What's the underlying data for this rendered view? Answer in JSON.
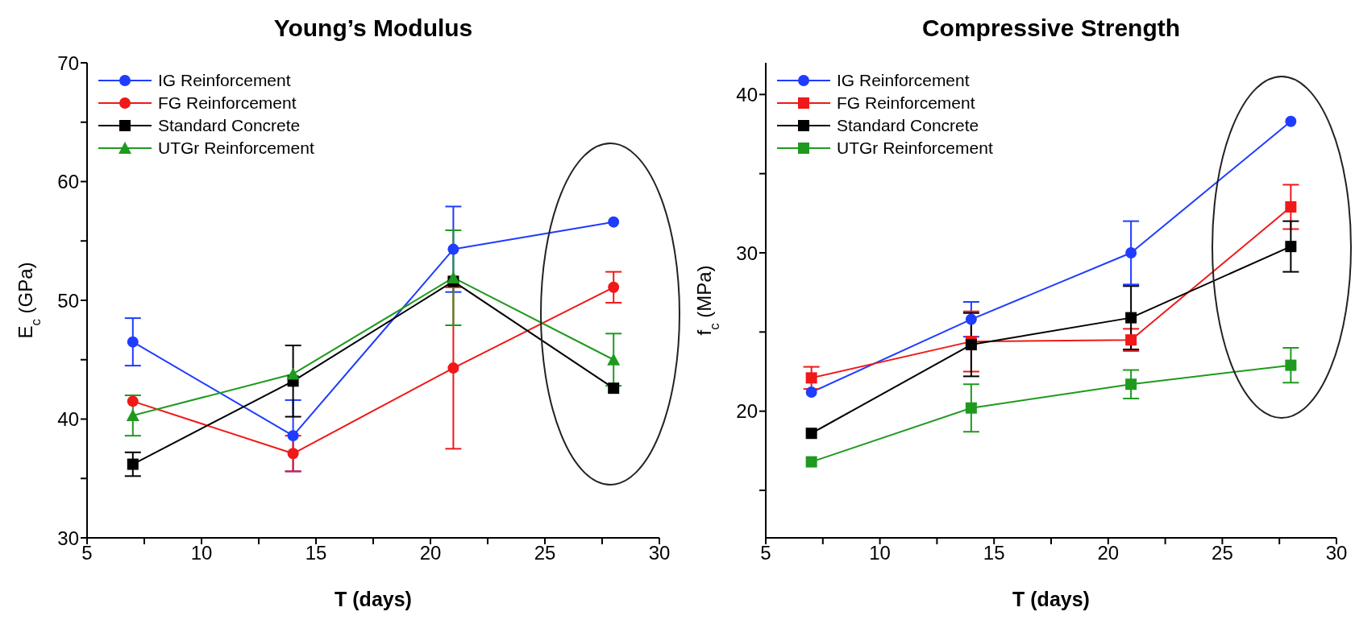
{
  "chart_data": [
    {
      "type": "line",
      "title": "Young’s Modulus",
      "xlabel": "T (days)",
      "ylabel": "E$_{c}$ (GPa)",
      "x": [
        7,
        14,
        21,
        28
      ],
      "xlim": [
        5,
        30
      ],
      "xticks": [
        5,
        {
          "value": 7.5,
          "label": null
        },
        10,
        {
          "value": 12.5,
          "label": null
        },
        15,
        {
          "value": 17.5,
          "label": null
        },
        20,
        {
          "value": 22.5,
          "label": null
        },
        25,
        {
          "value": 27.5,
          "label": null
        },
        30
      ],
      "ylim": [
        30,
        70
      ],
      "yticks": [
        30,
        {
          "value": 35,
          "label": null
        },
        40,
        {
          "value": 45,
          "label": null
        },
        50,
        {
          "value": 55,
          "label": null
        },
        60,
        {
          "value": 65,
          "label": null
        },
        70
      ],
      "grid": false,
      "legend": "top left",
      "series": [
        {
          "name": "IG Reinforcement",
          "color": "#1f3cff",
          "marker": "circle",
          "values": [
            46.5,
            38.6,
            54.3,
            56.6
          ],
          "errors": [
            2,
            3,
            3.6,
            null
          ]
        },
        {
          "name": "FG Reinforcement",
          "color": "#f01818",
          "marker": "circle",
          "values": [
            41.5,
            37.1,
            44.3,
            51.1
          ],
          "errors": [
            null,
            1.5,
            6.8,
            1.3
          ]
        },
        {
          "name": "Standard Concrete",
          "color": "#000000",
          "marker": "square",
          "values": [
            36.2,
            43.2,
            51.6,
            42.6
          ],
          "errors": [
            1,
            3,
            null,
            null
          ]
        },
        {
          "name": "UTGr Reinforcement",
          "color": "#1f9a1f",
          "marker": "triangle",
          "values": [
            40.3,
            43.8,
            51.9,
            45
          ],
          "errors": [
            1.7,
            null,
            4,
            2.2
          ]
        }
      ]
    },
    {
      "type": "line",
      "title": "Compressive Strength",
      "xlabel": "T (days)",
      "ylabel": "f$_{c}$ (MPa)",
      "x": [
        7,
        14,
        21,
        28
      ],
      "xlim": [
        5,
        30
      ],
      "xticks": [
        5,
        {
          "value": 7.5,
          "label": null
        },
        10,
        {
          "value": 12.5,
          "label": null
        },
        15,
        {
          "value": 17.5,
          "label": null
        },
        20,
        {
          "value": 22.5,
          "label": null
        },
        25,
        {
          "value": 27.5,
          "label": null
        },
        30
      ],
      "ylim": [
        12,
        42
      ],
      "yticks": [
        {
          "value": 15,
          "label": null
        },
        20,
        {
          "value": 25,
          "label": null
        },
        30,
        {
          "value": 35,
          "label": null
        },
        40
      ],
      "grid": false,
      "legend": "top left",
      "series": [
        {
          "name": "IG Reinforcement",
          "color": "#1f3cff",
          "marker": "circle",
          "values": [
            21.2,
            25.8,
            30,
            38.3
          ],
          "errors": [
            null,
            1.1,
            2,
            null
          ]
        },
        {
          "name": "FG Reinforcement",
          "color": "#f01818",
          "marker": "square",
          "values": [
            22.1,
            24.4,
            24.5,
            32.9
          ],
          "errors": [
            0.7,
            1.9,
            0.7,
            1.4
          ]
        },
        {
          "name": "Standard Concrete",
          "color": "#000000",
          "marker": "square",
          "values": [
            18.6,
            24.2,
            25.9,
            30.4
          ],
          "errors": [
            null,
            2,
            2,
            1.6
          ]
        },
        {
          "name": "UTGr Reinforcement",
          "color": "#1f9a1f",
          "marker": "square",
          "values": [
            16.8,
            20.2,
            21.7,
            22.9
          ],
          "errors": [
            null,
            1.5,
            0.9,
            1.1
          ]
        }
      ]
    }
  ]
}
